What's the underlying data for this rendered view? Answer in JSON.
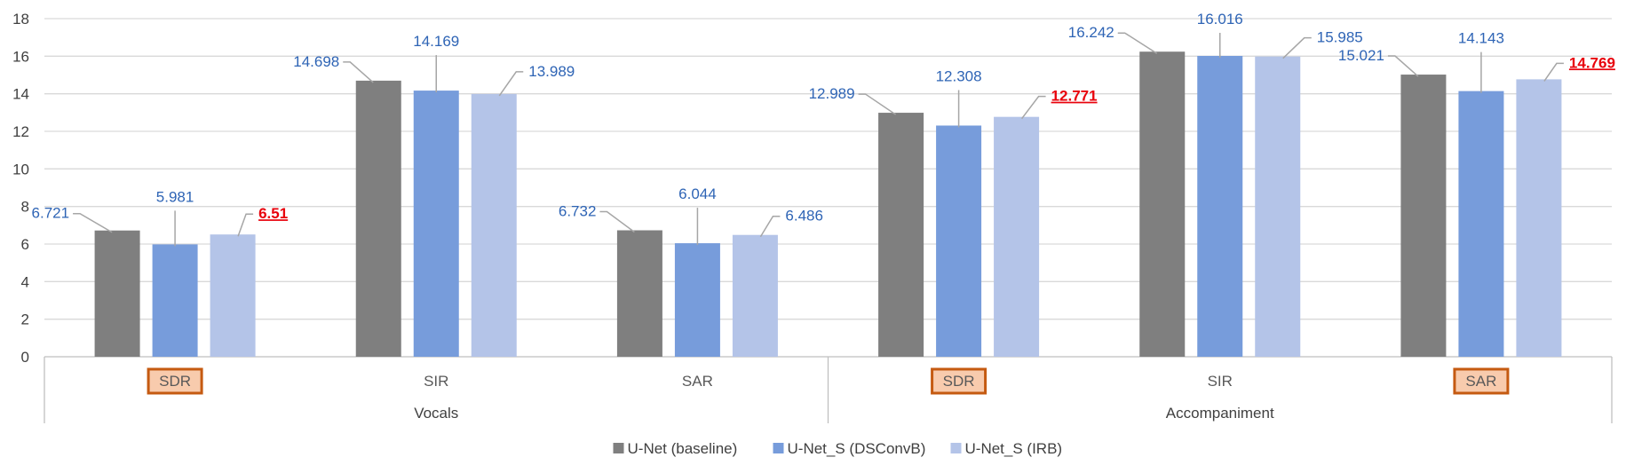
{
  "chart_data": {
    "type": "bar",
    "groups": [
      {
        "name": "Vocals",
        "categories": [
          "SDR",
          "SIR",
          "SAR"
        ]
      },
      {
        "name": "Accompaniment",
        "categories": [
          "SDR",
          "SIR",
          "SAR"
        ]
      }
    ],
    "categories": [
      "SDR",
      "SIR",
      "SAR",
      "SDR",
      "SIR",
      "SAR"
    ],
    "highlighted_categories": [
      0,
      3,
      5
    ],
    "series": [
      {
        "name": "U-Net (baseline)",
        "color": "#7F7F7F",
        "values": [
          6.721,
          14.698,
          6.732,
          12.989,
          16.242,
          15.021
        ],
        "labels": [
          "6.721",
          "14.698",
          "6.732",
          "12.989",
          "16.242",
          "15.021"
        ]
      },
      {
        "name": "U-Net_S (DSConvB)",
        "color": "#779CDB",
        "values": [
          5.981,
          14.169,
          6.044,
          12.308,
          16.016,
          14.143
        ],
        "labels": [
          "5.981",
          "14.169",
          "6.044",
          "12.308",
          "16.016",
          "14.143"
        ]
      },
      {
        "name": "U-Net_S (IRB)",
        "color": "#B4C4E8",
        "values": [
          6.51,
          13.989,
          6.486,
          12.771,
          15.985,
          14.769
        ],
        "labels": [
          "6.51",
          "13.989",
          "6.486",
          "12.771",
          "15.985",
          "14.769"
        ]
      }
    ],
    "highlighted_labels": [
      [
        2,
        0
      ],
      [
        2,
        3
      ],
      [
        2,
        5
      ]
    ],
    "yticks": [
      "0",
      "2",
      "4",
      "6",
      "8",
      "10",
      "12",
      "14",
      "16",
      "18"
    ],
    "ylim": [
      0,
      18
    ],
    "grid": true,
    "legend_position": "bottom",
    "colors": {
      "label": "#2E64B5",
      "highlight_label": "#E8000B",
      "highlight_box_fill": "#F8CBAD",
      "highlight_box_border": "#C55A11",
      "grid": "#D9D9D9",
      "leader": "#A6A6A6"
    }
  }
}
